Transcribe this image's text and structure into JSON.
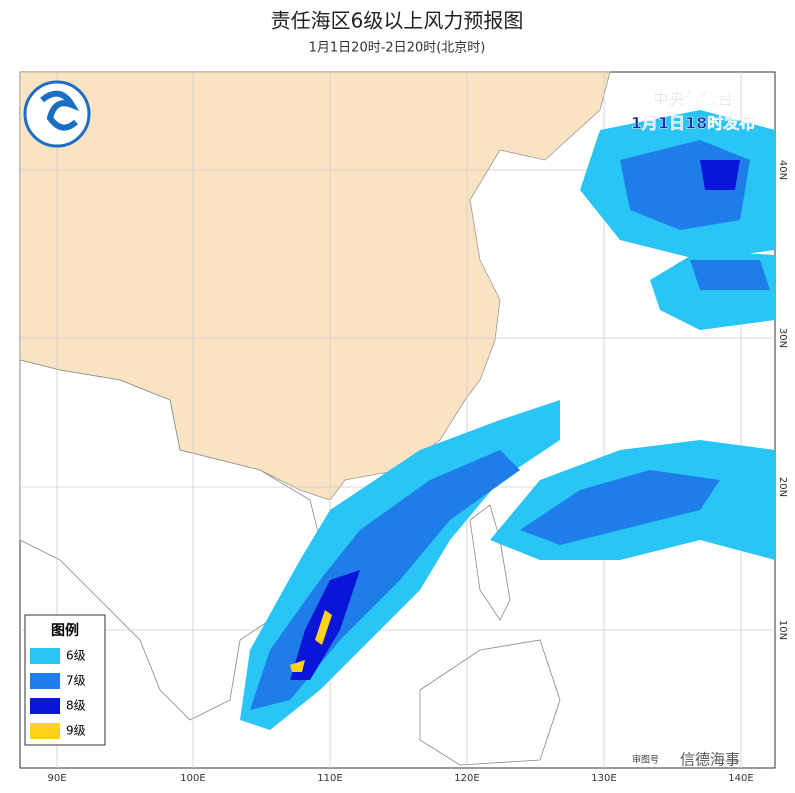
{
  "header": {
    "title": "责任海区6级以上风力预报图",
    "subtitle": "1月1日20时-2日20时(北京时)"
  },
  "issuer": {
    "name": "中央气象台",
    "time": "1月1日18时发布"
  },
  "legend": {
    "title": "图例",
    "items": [
      "6级",
      "7级",
      "8级",
      "9级"
    ]
  },
  "longitude_labels": [
    "90E",
    "100E",
    "110E",
    "120E",
    "130E",
    "140E"
  ],
  "latitude_labels": [
    "40N",
    "30N",
    "20N",
    "10N"
  ],
  "footer": {
    "approval": "审图号",
    "watermark": "信德海事"
  }
}
